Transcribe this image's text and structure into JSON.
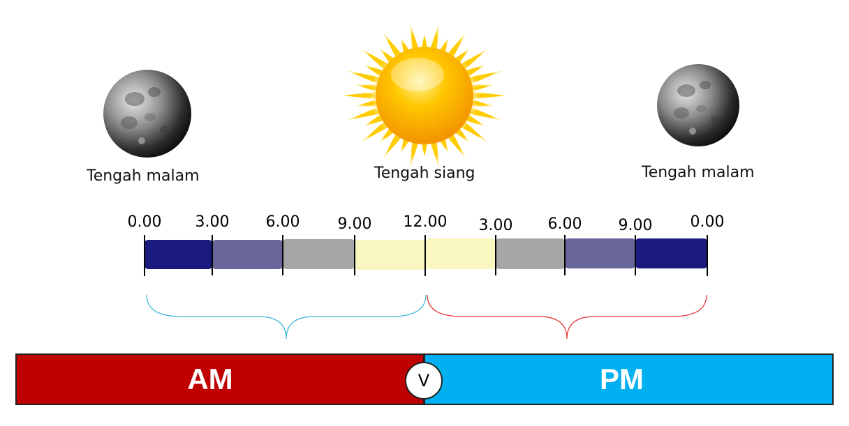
{
  "captions": {
    "left_moon": "Tengah malam",
    "sun": "Tengah siang",
    "right_moon": "Tengah malam"
  },
  "icons": {
    "left": "moon-icon",
    "center": "sun-icon",
    "right": "moon-icon"
  },
  "timeline": {
    "ticks": [
      "0.00",
      "3.00",
      "6.00",
      "9.00",
      "12.00",
      "3.00",
      "6.00",
      "9.00",
      "0.00"
    ],
    "segment_colors": [
      "#1b1a7e",
      "#67659a",
      "#a6a6a6",
      "#faf6c0",
      "#faf6c0",
      "#a6a6a6",
      "#67659a",
      "#1b1a7e"
    ]
  },
  "braces": {
    "am_color": "#33b5d8",
    "pm_color": "#e03030"
  },
  "bottom_bar": {
    "am_label": "AM",
    "pm_label": "PM",
    "center_label": "V",
    "am_color": "#c00000",
    "pm_color": "#00b0f0"
  }
}
